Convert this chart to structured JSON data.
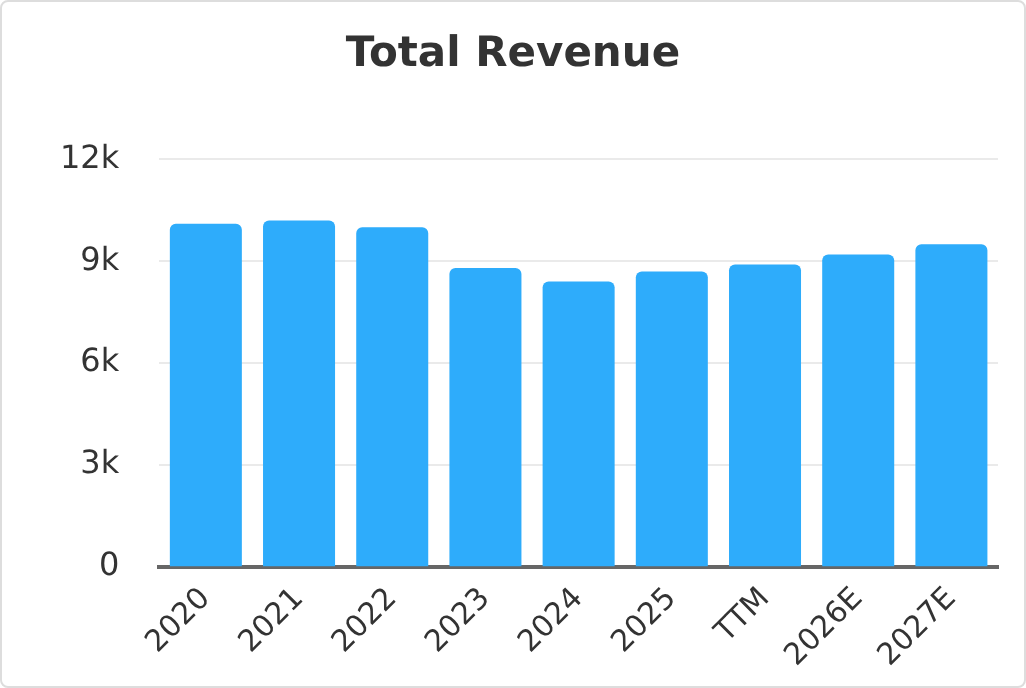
{
  "chart_data": {
    "type": "bar",
    "title": "Total Revenue",
    "categories": [
      "2020",
      "2021",
      "2022",
      "2023",
      "2024",
      "2025",
      "TTM",
      "2026E",
      "2027E"
    ],
    "values": [
      10100,
      10200,
      10000,
      8800,
      8400,
      8700,
      8900,
      9200,
      9500
    ],
    "color": "#2eacfb",
    "ylim": [
      0,
      12000
    ],
    "yticks": [
      {
        "value": 0,
        "label": "0"
      },
      {
        "value": 3000,
        "label": "3k"
      },
      {
        "value": 6000,
        "label": "6k"
      },
      {
        "value": 9000,
        "label": "9k"
      },
      {
        "value": 12000,
        "label": "12k"
      }
    ],
    "grid": "y",
    "legend": false
  }
}
